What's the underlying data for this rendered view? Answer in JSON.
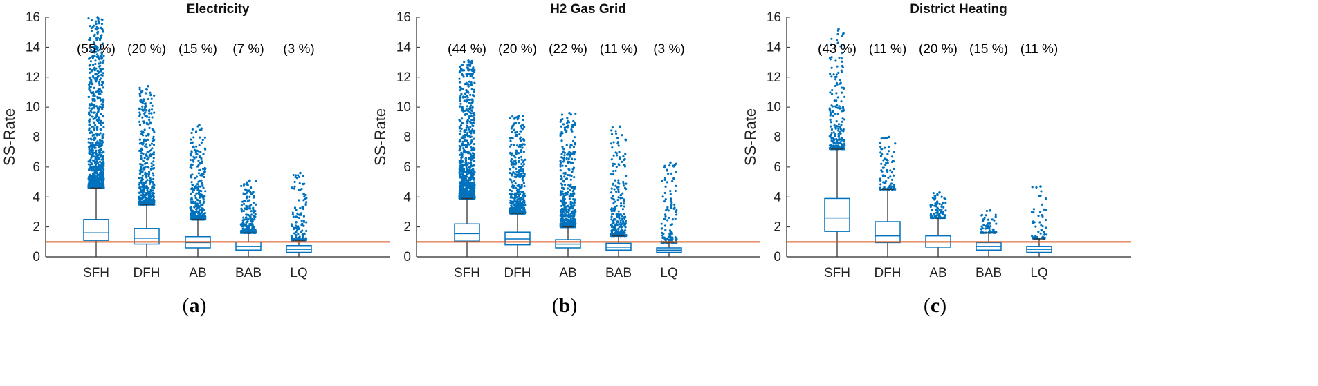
{
  "chart_data": [
    {
      "type": "box",
      "title": "Electricity",
      "ylabel": "SS-Rate",
      "xlabel": "",
      "ylim": [
        0,
        16
      ],
      "yticks": [
        0,
        2,
        4,
        6,
        8,
        10,
        12,
        14,
        16
      ],
      "categories": [
        "SFH",
        "DFH",
        "AB",
        "BAB",
        "LQ"
      ],
      "shares": [
        "(55 %)",
        "(20 %)",
        "(15 %)",
        "(7 %)",
        "(3 %)"
      ],
      "reference_line": 1,
      "boxes": [
        {
          "min": 0,
          "q1": 1.1,
          "median": 1.6,
          "q3": 2.5,
          "whisker_high": 4.6,
          "outlier_max": 16.0,
          "outlier_density": 1.0
        },
        {
          "min": 0,
          "q1": 0.85,
          "median": 1.25,
          "q3": 1.9,
          "whisker_high": 3.5,
          "outlier_max": 11.4,
          "outlier_density": 0.55
        },
        {
          "min": 0,
          "q1": 0.6,
          "median": 0.95,
          "q3": 1.35,
          "whisker_high": 2.5,
          "outlier_max": 8.8,
          "outlier_density": 0.4
        },
        {
          "min": 0,
          "q1": 0.45,
          "median": 0.7,
          "q3": 1.0,
          "whisker_high": 1.6,
          "outlier_max": 5.1,
          "outlier_density": 0.25
        },
        {
          "min": 0,
          "q1": 0.3,
          "median": 0.5,
          "q3": 0.75,
          "whisker_high": 1.1,
          "outlier_max": 5.6,
          "outlier_density": 0.15
        }
      ],
      "panel_label": {
        "open": "(",
        "letter": "a",
        "close": ")"
      }
    },
    {
      "type": "box",
      "title": "H2 Gas Grid",
      "ylabel": "SS-Rate",
      "xlabel": "",
      "ylim": [
        0,
        16
      ],
      "yticks": [
        0,
        2,
        4,
        6,
        8,
        10,
        12,
        14,
        16
      ],
      "categories": [
        "SFH",
        "DFH",
        "AB",
        "BAB",
        "LQ"
      ],
      "shares": [
        "(44 %)",
        "(20 %)",
        "(22 %)",
        "(11 %)",
        "(3 %)"
      ],
      "reference_line": 1,
      "boxes": [
        {
          "min": 0,
          "q1": 1.05,
          "median": 1.55,
          "q3": 2.2,
          "whisker_high": 3.9,
          "outlier_max": 13.1,
          "outlier_density": 1.0
        },
        {
          "min": 0,
          "q1": 0.8,
          "median": 1.2,
          "q3": 1.65,
          "whisker_high": 2.9,
          "outlier_max": 9.4,
          "outlier_density": 0.6
        },
        {
          "min": 0,
          "q1": 0.6,
          "median": 0.85,
          "q3": 1.15,
          "whisker_high": 2.0,
          "outlier_max": 9.6,
          "outlier_density": 0.55
        },
        {
          "min": 0,
          "q1": 0.45,
          "median": 0.65,
          "q3": 0.9,
          "whisker_high": 1.4,
          "outlier_max": 8.7,
          "outlier_density": 0.3
        },
        {
          "min": 0,
          "q1": 0.3,
          "median": 0.45,
          "q3": 0.6,
          "whisker_high": 0.95,
          "outlier_max": 6.3,
          "outlier_density": 0.15
        }
      ],
      "panel_label": {
        "open": "(",
        "letter": "b",
        "close": ")"
      }
    },
    {
      "type": "box",
      "title": "District Heating",
      "ylabel": "SS-Rate",
      "xlabel": "",
      "ylim": [
        0,
        16
      ],
      "yticks": [
        0,
        2,
        4,
        6,
        8,
        10,
        12,
        14,
        16
      ],
      "categories": [
        "SFH",
        "DFH",
        "AB",
        "BAB",
        "LQ"
      ],
      "shares": [
        "(43 %)",
        "(11 %)",
        "(20 %)",
        "(15 %)",
        "(11 %)"
      ],
      "reference_line": 1,
      "boxes": [
        {
          "min": 0,
          "q1": 1.7,
          "median": 2.6,
          "q3": 3.9,
          "whisker_high": 7.2,
          "outlier_max": 15.2,
          "outlier_density": 0.25
        },
        {
          "min": 0,
          "q1": 0.95,
          "median": 1.4,
          "q3": 2.35,
          "whisker_high": 4.5,
          "outlier_max": 8.0,
          "outlier_density": 0.1
        },
        {
          "min": 0,
          "q1": 0.65,
          "median": 1.0,
          "q3": 1.4,
          "whisker_high": 2.6,
          "outlier_max": 4.3,
          "outlier_density": 0.1
        },
        {
          "min": 0,
          "q1": 0.45,
          "median": 0.7,
          "q3": 0.95,
          "whisker_high": 1.6,
          "outlier_max": 3.1,
          "outlier_density": 0.07
        },
        {
          "min": 0,
          "q1": 0.3,
          "median": 0.5,
          "q3": 0.7,
          "whisker_high": 1.2,
          "outlier_max": 4.7,
          "outlier_density": 0.07
        }
      ],
      "panel_label": {
        "open": "(",
        "letter": "c",
        "close": ")"
      }
    }
  ],
  "colors": {
    "box": "#0072BD",
    "outlier": "#0072BD",
    "reference_line": "#D95319",
    "axis": "#262626",
    "whisker": "#333333"
  }
}
